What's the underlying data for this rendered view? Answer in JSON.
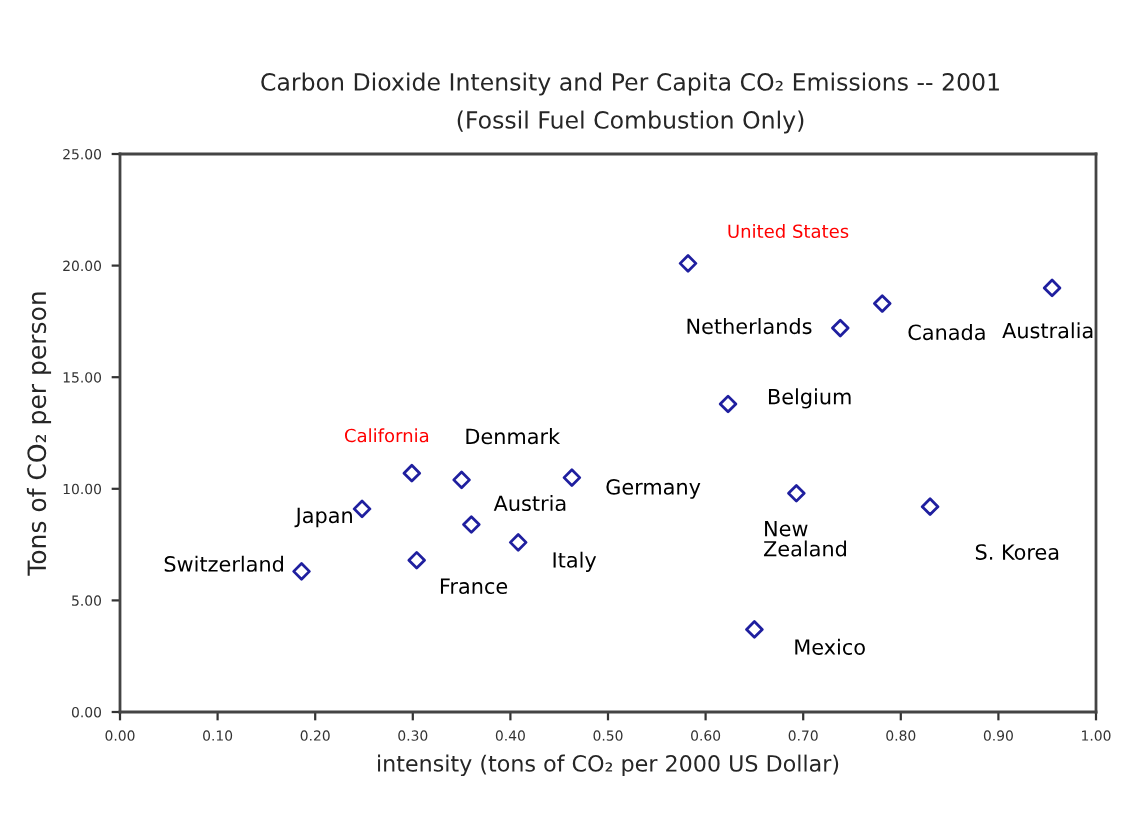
{
  "chart_data": {
    "type": "scatter",
    "title": "Carbon Dioxide Intensity and Per Capita CO₂ Emissions -- 2001",
    "subtitle": "(Fossil Fuel Combustion Only)",
    "xlabel": "intensity (tons of CO₂ per 2000 US Dollar)",
    "ylabel": "Tons of CO₂ per person",
    "series": [
      {
        "color": "#1f1f9f",
        "x": [
          0.582,
          0.738,
          0.781,
          0.955,
          0.623,
          0.463,
          0.693,
          0.83,
          0.65,
          0.299,
          0.35,
          0.248,
          0.36,
          0.408,
          0.304,
          0.186
        ],
        "values": [
          20.1,
          17.2,
          18.3,
          19.0,
          13.8,
          10.5,
          9.8,
          9.2,
          3.7,
          10.7,
          10.4,
          9.1,
          8.4,
          7.6,
          6.8,
          6.3
        ]
      }
    ],
    "annotations": [
      {
        "text": "United States",
        "x": 0.582,
        "y": 20.1
      },
      {
        "text": "Netherlands",
        "x": 0.738,
        "y": 17.2
      },
      {
        "text": "Canada",
        "x": 0.781,
        "y": 18.3
      },
      {
        "text": "Australia",
        "x": 0.955,
        "y": 19.0
      },
      {
        "text": "Belgium",
        "x": 0.623,
        "y": 13.8
      },
      {
        "text": "Germany",
        "x": 0.463,
        "y": 10.5
      },
      {
        "text": "New\nZealand",
        "x": 0.693,
        "y": 9.8
      },
      {
        "text": "S. Korea",
        "x": 0.83,
        "y": 9.2
      },
      {
        "text": "Mexico",
        "x": 0.65,
        "y": 3.7
      },
      {
        "text": "California",
        "x": 0.299,
        "y": 10.7
      },
      {
        "text": "Denmark",
        "x": 0.35,
        "y": 10.4
      },
      {
        "text": "Japan",
        "x": 0.248,
        "y": 9.1
      },
      {
        "text": "Austria",
        "x": 0.36,
        "y": 8.4
      },
      {
        "text": "Italy",
        "x": 0.408,
        "y": 7.6
      },
      {
        "text": "France",
        "x": 0.304,
        "y": 6.8
      },
      {
        "text": "Switzerland",
        "x": 0.186,
        "y": 6.3
      }
    ],
    "xlim": [
      0,
      1
    ],
    "ylim": [
      0,
      25
    ],
    "xticks": [
      {
        "value": 0,
        "label": "0.00"
      },
      {
        "value": 0.1,
        "label": "0.10"
      },
      {
        "value": 0.2,
        "label": "0.20"
      },
      {
        "value": 0.3,
        "label": "0.30"
      },
      {
        "value": 0.4,
        "label": "0.40"
      },
      {
        "value": 0.5,
        "label": "0.50"
      },
      {
        "value": 0.6,
        "label": "0.60"
      },
      {
        "value": 0.7,
        "label": "0.70"
      },
      {
        "value": 0.8,
        "label": "0.80"
      },
      {
        "value": 0.9,
        "label": "0.90"
      },
      {
        "value": 1,
        "label": "1.00"
      }
    ],
    "yticks": [
      {
        "value": 0,
        "label": "0.00"
      },
      {
        "value": 5,
        "label": "5.00"
      },
      {
        "value": 10,
        "label": "10.00"
      },
      {
        "value": 15,
        "label": "15.00"
      },
      {
        "value": 20,
        "label": "20.00"
      },
      {
        "value": 25,
        "label": "25.00"
      }
    ],
    "marker": "diamond",
    "grid": false,
    "legend": false
  }
}
